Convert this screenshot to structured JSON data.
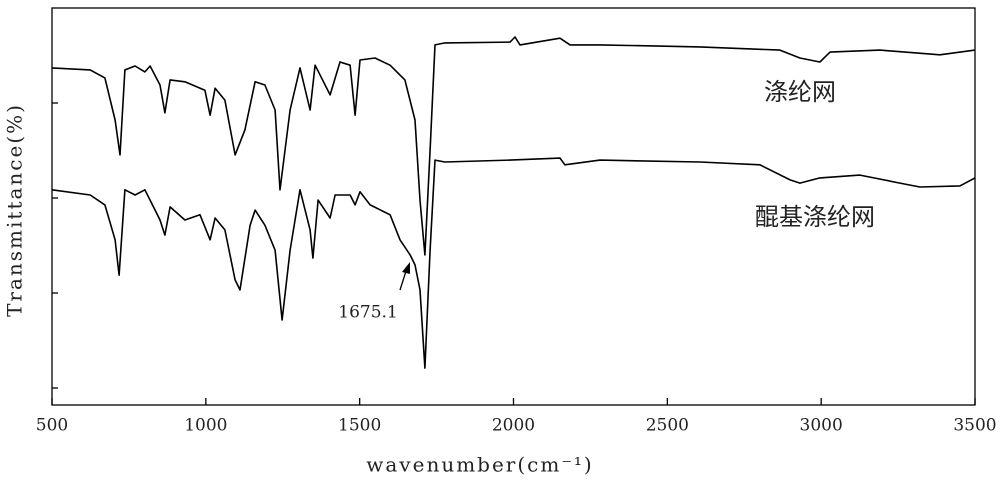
{
  "chart_data": {
    "type": "line",
    "x_label": "wavenumber(cm⁻¹)",
    "y_label": "Transmittance(%)",
    "xlim": [
      500,
      3500
    ],
    "xticks": [
      500,
      1000,
      1500,
      2000,
      2500,
      3000,
      3500
    ],
    "ylim": [
      0,
      100
    ],
    "annotations": [
      {
        "text": "1675.1"
      }
    ],
    "series": [
      {
        "name": "涤纶网",
        "color": "#000000",
        "x": [
          500,
          624,
          672,
          705,
          721,
          737,
          770,
          802,
          819,
          851,
          867,
          884,
          932,
          997,
          1014,
          1030,
          1062,
          1095,
          1127,
          1160,
          1192,
          1225,
          1241,
          1274,
          1306,
          1339,
          1355,
          1404,
          1436,
          1469,
          1485,
          1501,
          1550,
          1599,
          1647,
          1680,
          1696,
          1712,
          1729,
          1745,
          1777,
          1989,
          2005,
          2021,
          2151,
          2184,
          2281,
          2606,
          2866,
          2931,
          2996,
          3029,
          3191,
          3386,
          3500
        ],
        "values": [
          84.9,
          84.4,
          82.4,
          71.8,
          63.0,
          84.4,
          85.4,
          83.9,
          85.4,
          80.6,
          73.6,
          81.9,
          81.4,
          79.3,
          73.0,
          79.8,
          76.8,
          63.0,
          69.3,
          81.4,
          80.6,
          74.3,
          54.2,
          74.3,
          84.9,
          74.3,
          85.6,
          78.1,
          86.4,
          85.6,
          73.0,
          86.9,
          87.4,
          85.6,
          81.9,
          71.8,
          51.6,
          37.8,
          64.2,
          90.7,
          91.2,
          91.4,
          92.7,
          90.7,
          92.4,
          90.7,
          90.7,
          90.2,
          89.4,
          87.4,
          86.4,
          88.9,
          89.4,
          88.2,
          89.4
        ]
      },
      {
        "name": "醌基涤纶网",
        "color": "#000000",
        "x": [
          500,
          624,
          672,
          705,
          718,
          737,
          770,
          802,
          835,
          851,
          867,
          884,
          932,
          981,
          1014,
          1030,
          1062,
          1095,
          1111,
          1144,
          1160,
          1192,
          1225,
          1248,
          1274,
          1306,
          1339,
          1348,
          1365,
          1404,
          1420,
          1469,
          1485,
          1501,
          1534,
          1599,
          1631,
          1664,
          1680,
          1696,
          1712,
          1729,
          1745,
          1777,
          1989,
          2151,
          2167,
          2281,
          2606,
          2801,
          2899,
          2931,
          2996,
          3126,
          3256,
          3321,
          3451,
          3500
        ],
        "values": [
          54.2,
          52.9,
          50.4,
          41.6,
          32.7,
          54.2,
          52.9,
          54.2,
          49.1,
          46.6,
          42.8,
          49.9,
          46.6,
          47.9,
          41.6,
          47.1,
          44.1,
          31.5,
          29.0,
          45.3,
          49.1,
          45.3,
          39.0,
          21.4,
          39.0,
          54.2,
          44.1,
          37.0,
          51.6,
          47.1,
          52.9,
          52.9,
          50.4,
          53.7,
          50.4,
          47.9,
          41.6,
          37.8,
          35.3,
          29.0,
          9.3,
          39.0,
          61.7,
          61.2,
          61.7,
          62.2,
          60.5,
          61.7,
          61.2,
          60.5,
          56.7,
          55.9,
          57.2,
          57.9,
          55.9,
          54.9,
          55.2,
          57.2
        ]
      }
    ]
  }
}
